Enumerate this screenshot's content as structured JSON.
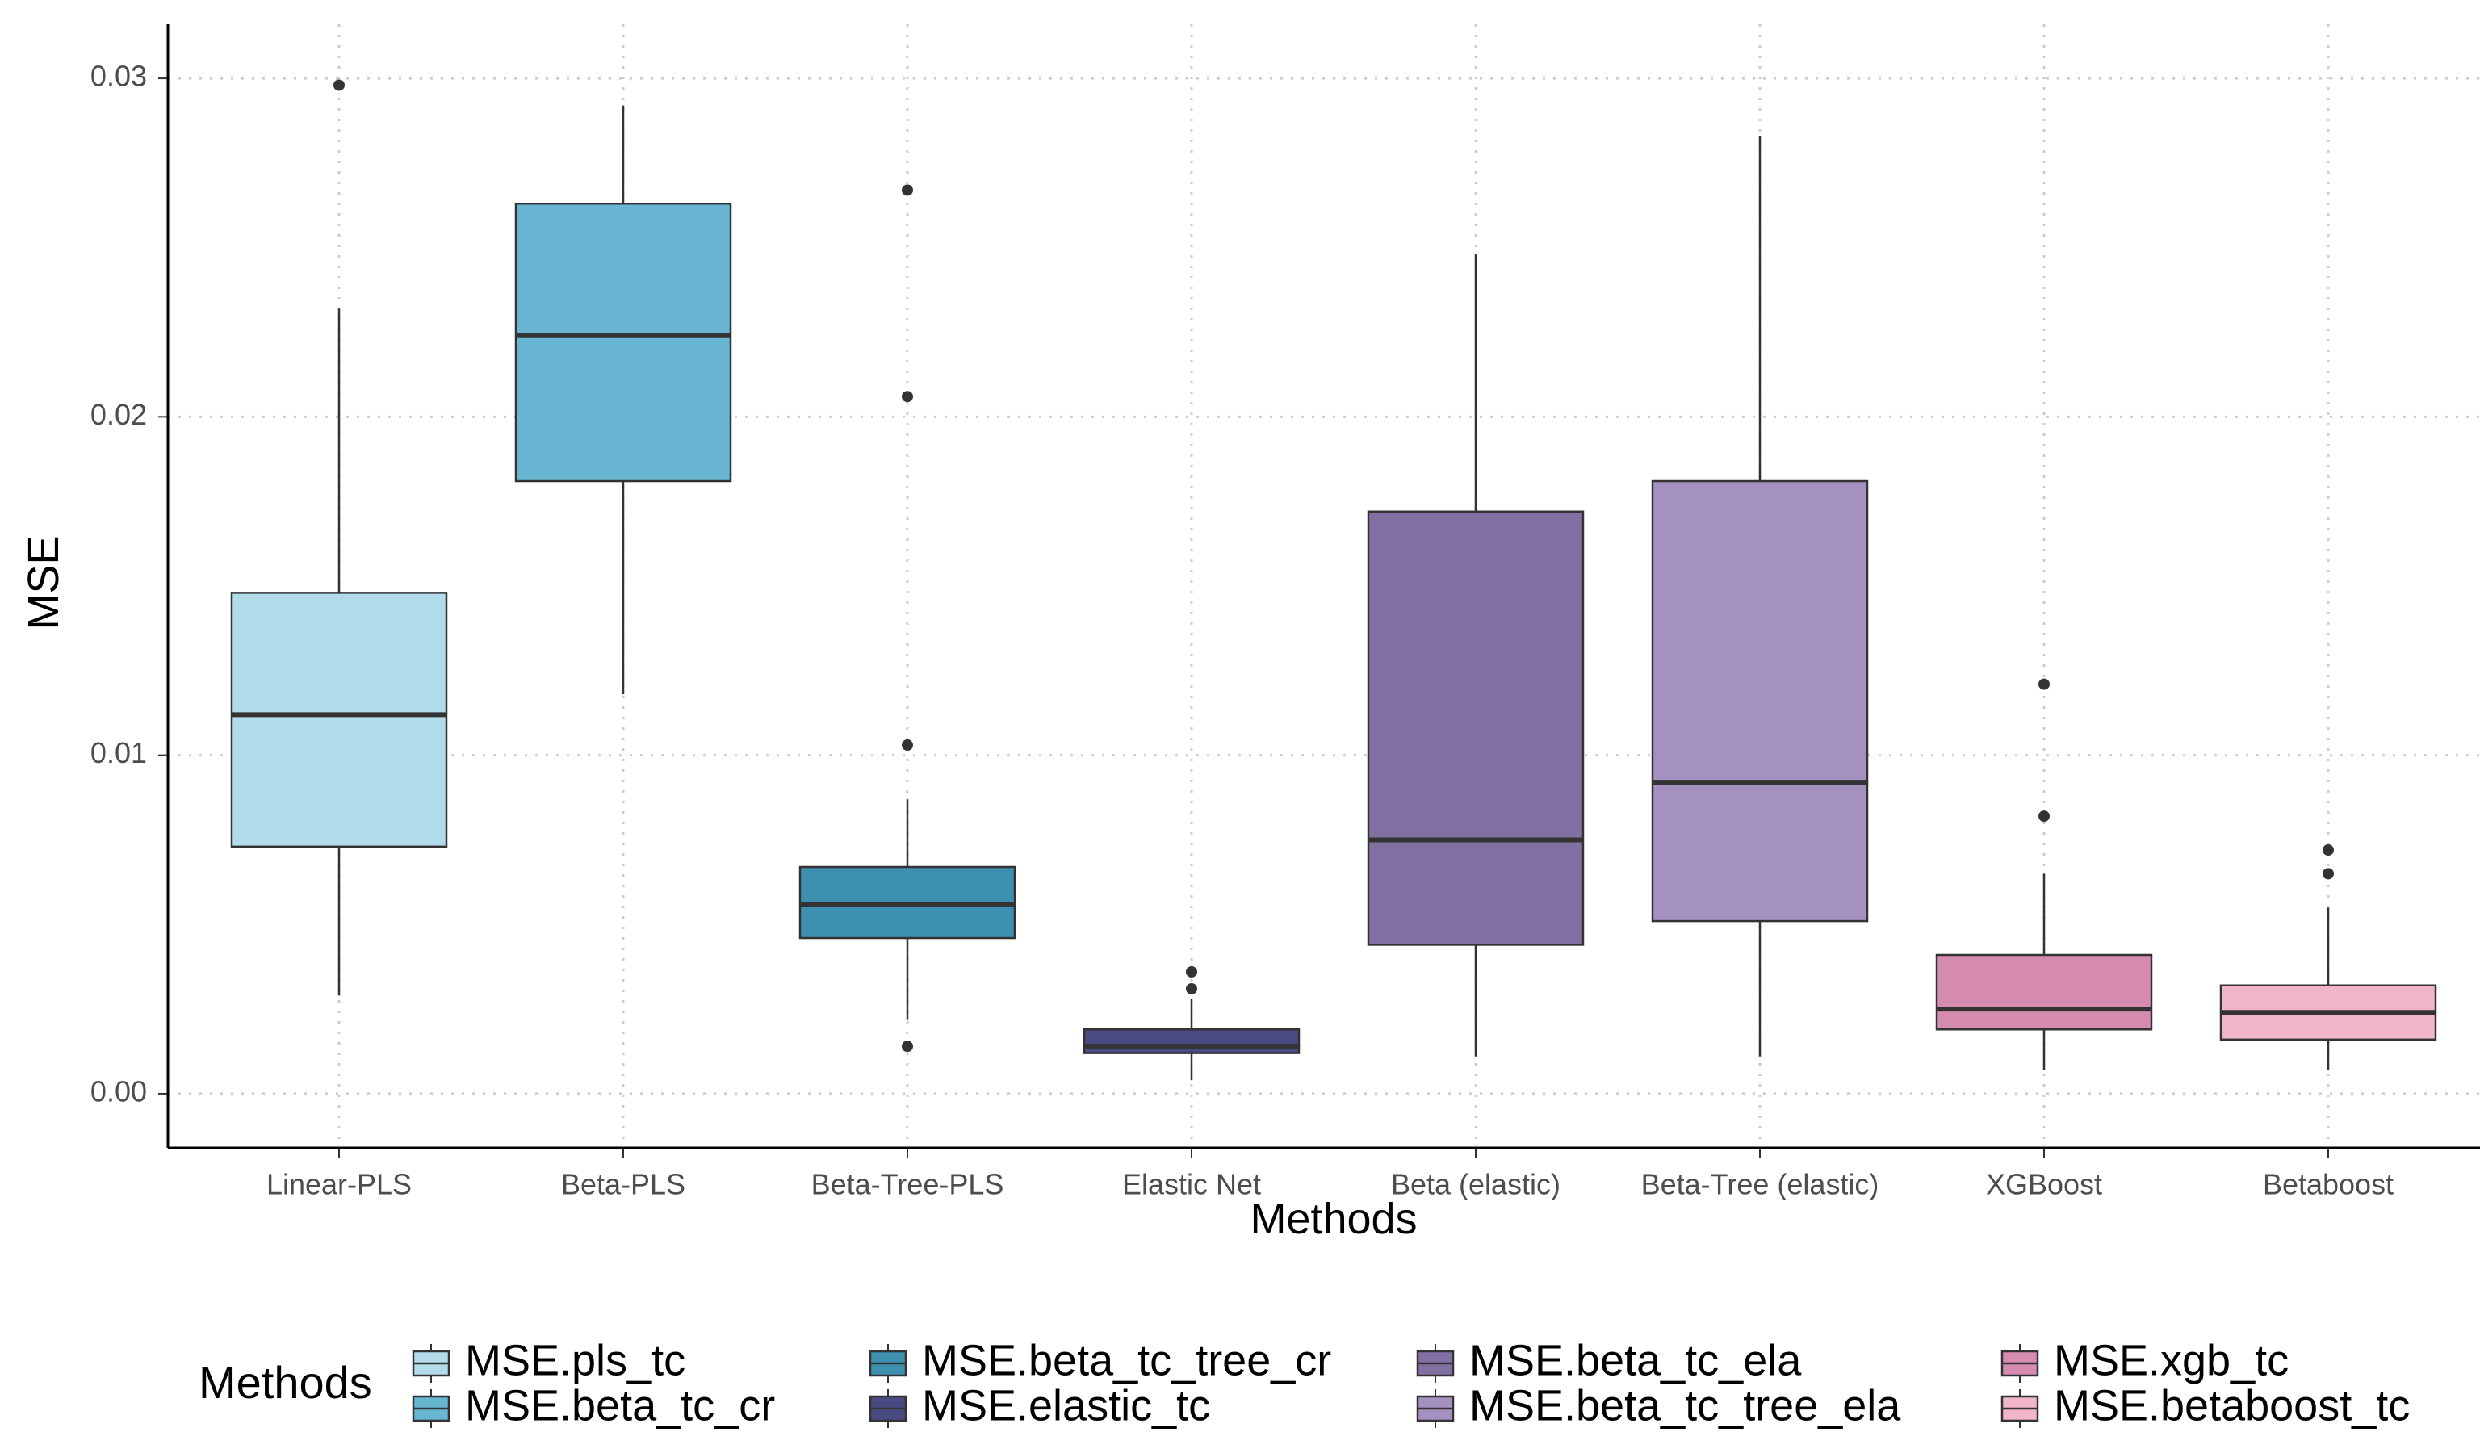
{
  "chart_data": {
    "type": "boxplot",
    "title": "",
    "xlabel": "Methods",
    "ylabel": "MSE",
    "ylim": [
      -0.0016,
      0.0316
    ],
    "yticks": [
      0.0,
      0.01,
      0.02,
      0.03
    ],
    "ytick_labels": [
      "0.00",
      "0.01",
      "0.02",
      "0.03"
    ],
    "grid": "dotted",
    "legend": {
      "title": "Methods",
      "position": "bottom",
      "entries": [
        "MSE.pls_tc",
        "MSE.beta_tc_cr",
        "MSE.beta_tc_tree_cr",
        "MSE.elastic_tc",
        "MSE.beta_tc_ela",
        "MSE.beta_tc_tree_ela",
        "MSE.xgb_tc",
        "MSE.betaboost_tc"
      ]
    },
    "categories": [
      "Linear-PLS",
      "Beta-PLS",
      "Beta-Tree-PLS",
      "Elastic Net",
      "Beta (elastic)",
      "Beta-Tree (elastic)",
      "XGBoost",
      "Betaboost"
    ],
    "series": [
      {
        "name": "MSE.pls_tc",
        "color": "#b3dceb",
        "whisker_low": 0.0029,
        "q1": 0.0073,
        "median": 0.0112,
        "q3": 0.0148,
        "whisker_high": 0.0232,
        "outliers": [
          0.0298
        ]
      },
      {
        "name": "MSE.beta_tc_cr",
        "color": "#68b5d2",
        "whisker_low": 0.0118,
        "q1": 0.0181,
        "median": 0.0224,
        "q3": 0.0263,
        "whisker_high": 0.0292,
        "outliers": []
      },
      {
        "name": "MSE.beta_tc_tree_cr",
        "color": "#3e90b0",
        "whisker_low": 0.0022,
        "q1": 0.0046,
        "median": 0.0056,
        "q3": 0.0067,
        "whisker_high": 0.0087,
        "outliers": [
          0.0014,
          0.0103,
          0.0206,
          0.0267
        ]
      },
      {
        "name": "MSE.elastic_tc",
        "color": "#4a4a83",
        "whisker_low": 0.0004,
        "q1": 0.0012,
        "median": 0.0014,
        "q3": 0.0019,
        "whisker_high": 0.0028,
        "outliers": [
          0.0031,
          0.0036
        ]
      },
      {
        "name": "MSE.beta_tc_ela",
        "color": "#8370a2",
        "whisker_low": 0.0011,
        "q1": 0.0044,
        "median": 0.0075,
        "q3": 0.0172,
        "whisker_high": 0.0248,
        "outliers": []
      },
      {
        "name": "MSE.beta_tc_tree_ela",
        "color": "#a590c2",
        "whisker_low": 0.0011,
        "q1": 0.0051,
        "median": 0.0092,
        "q3": 0.0181,
        "whisker_high": 0.0283,
        "outliers": []
      },
      {
        "name": "MSE.xgb_tc",
        "color": "#d68cb0",
        "whisker_low": 0.0007,
        "q1": 0.0019,
        "median": 0.0025,
        "q3": 0.0041,
        "whisker_high": 0.0065,
        "outliers": [
          0.0082,
          0.0121
        ]
      },
      {
        "name": "MSE.betaboost_tc",
        "color": "#f0b5c8",
        "whisker_low": 0.0007,
        "q1": 0.0016,
        "median": 0.0024,
        "q3": 0.0032,
        "whisker_high": 0.0055,
        "outliers": [
          0.0065,
          0.0072
        ]
      }
    ]
  }
}
